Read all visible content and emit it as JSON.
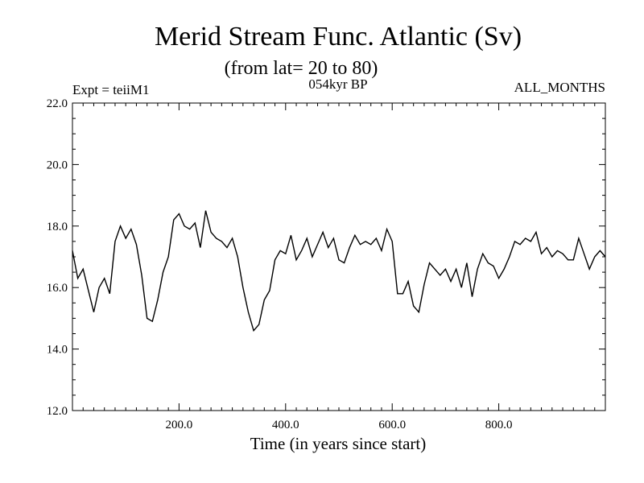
{
  "chart_data": {
    "type": "line",
    "title": "Merid Stream Func. Atlantic (Sv)",
    "subtitle": "(from lat= 20 to 80)",
    "header_left": "Expt = teiiM1",
    "header_center": "054kyr BP",
    "header_right": "ALL_MONTHS",
    "xlabel": "Time (in years since start)",
    "ylabel": "",
    "xlim": [
      0,
      1000
    ],
    "ylim": [
      12,
      22
    ],
    "xticks": [
      200,
      400,
      600,
      800
    ],
    "xtick_labels": [
      "200.0",
      "400.0",
      "600.0",
      "800.0"
    ],
    "yticks": [
      12,
      14,
      16,
      18,
      20,
      22
    ],
    "ytick_labels": [
      "12.0",
      "14.0",
      "16.0",
      "18.0",
      "20.0",
      "22.0"
    ],
    "grid": false,
    "series": [
      {
        "color": "#000000",
        "x": [
          0,
          10,
          20,
          30,
          40,
          50,
          60,
          70,
          80,
          90,
          100,
          110,
          120,
          130,
          140,
          150,
          160,
          170,
          180,
          190,
          200,
          210,
          220,
          230,
          240,
          250,
          260,
          270,
          280,
          290,
          300,
          310,
          320,
          330,
          340,
          350,
          360,
          370,
          380,
          390,
          400,
          410,
          420,
          430,
          440,
          450,
          460,
          470,
          480,
          490,
          500,
          510,
          520,
          530,
          540,
          550,
          560,
          570,
          580,
          590,
          600,
          610,
          620,
          630,
          640,
          650,
          660,
          670,
          680,
          690,
          700,
          710,
          720,
          730,
          740,
          750,
          760,
          770,
          780,
          790,
          800,
          810,
          820,
          830,
          840,
          850,
          860,
          870,
          880,
          890,
          900,
          910,
          920,
          930,
          940,
          950,
          960,
          970,
          980,
          990,
          1000
        ],
        "y": [
          17.2,
          16.3,
          16.6,
          15.9,
          15.2,
          16.0,
          16.3,
          15.8,
          17.5,
          18.0,
          17.6,
          17.9,
          17.4,
          16.4,
          15.0,
          14.9,
          15.6,
          16.5,
          17.0,
          18.2,
          18.4,
          18.0,
          17.9,
          18.1,
          17.3,
          18.5,
          17.8,
          17.6,
          17.5,
          17.3,
          17.6,
          17.0,
          16.0,
          15.2,
          14.6,
          14.8,
          15.6,
          15.9,
          16.9,
          17.2,
          17.1,
          17.7,
          16.9,
          17.2,
          17.6,
          17.0,
          17.4,
          17.8,
          17.3,
          17.6,
          16.9,
          16.8,
          17.3,
          17.7,
          17.4,
          17.5,
          17.4,
          17.6,
          17.2,
          17.9,
          17.5,
          15.8,
          15.8,
          16.2,
          15.4,
          15.2,
          16.1,
          16.8,
          16.6,
          16.4,
          16.6,
          16.2,
          16.6,
          16.0,
          16.8,
          15.7,
          16.6,
          17.1,
          16.8,
          16.7,
          16.3,
          16.6,
          17.0,
          17.5,
          17.4,
          17.6,
          17.5,
          17.8,
          17.1,
          17.3,
          17.0,
          17.2,
          17.1,
          16.9,
          16.9,
          17.6,
          17.1,
          16.6,
          17.0,
          17.2,
          17.0
        ]
      }
    ]
  }
}
